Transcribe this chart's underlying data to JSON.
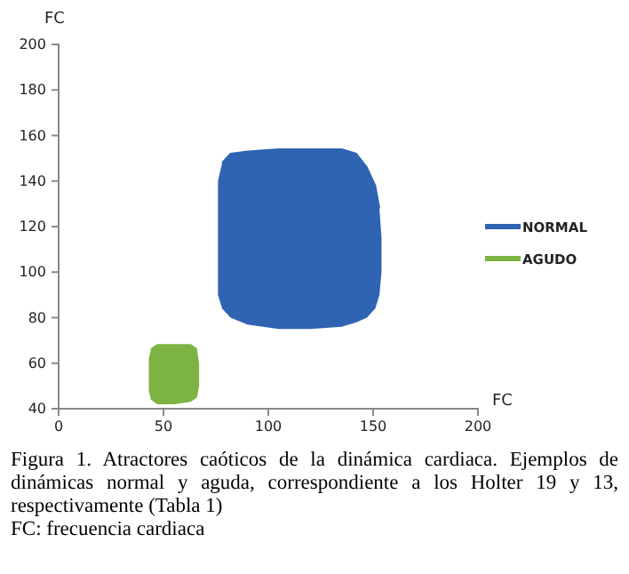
{
  "chart_data": {
    "type": "line",
    "xlabel": "FC",
    "ylabel": "FC",
    "xlim": [
      0,
      200
    ],
    "xticks": [
      0,
      50,
      100,
      150,
      200
    ],
    "ylim": [
      40,
      200
    ],
    "yticks": [
      40,
      60,
      80,
      100,
      120,
      140,
      160,
      180,
      200
    ],
    "grid": false,
    "legend": "right",
    "series": [
      {
        "name": "NORMAL",
        "color": "#2e64b2",
        "x": [
          76,
          78,
          82,
          90,
          105,
          120,
          135,
          142,
          147,
          151,
          153,
          154
        ],
        "values": [
          null,
          148,
          152,
          153,
          154,
          154,
          154,
          152,
          146,
          138,
          128,
          null
        ],
        "upper": [
          140,
          148,
          152,
          153,
          154,
          154,
          154,
          152,
          146,
          138,
          128,
          115
        ],
        "lower": [
          90,
          84,
          80,
          77,
          75,
          75,
          76,
          78,
          80,
          84,
          90,
          100
        ]
      },
      {
        "name": "AGUDO",
        "color": "#7cb342",
        "x": [
          43,
          44,
          47,
          55,
          63,
          66,
          67
        ],
        "values": [
          null,
          66,
          68,
          68,
          68,
          66,
          null
        ],
        "upper": [
          62,
          66,
          68,
          68,
          68,
          66,
          60
        ],
        "lower": [
          48,
          44,
          42,
          42,
          43,
          45,
          50
        ]
      }
    ],
    "annotations": [
      "Figura 1. Atractores caóticos de la dinámica cardiaca. Ejemplos de dinámicas normal y aguda, correspondiente a los Holter 19 y 13, respectivamente (Tabla 1)",
      "FC: frecuencia cardiaca"
    ]
  }
}
